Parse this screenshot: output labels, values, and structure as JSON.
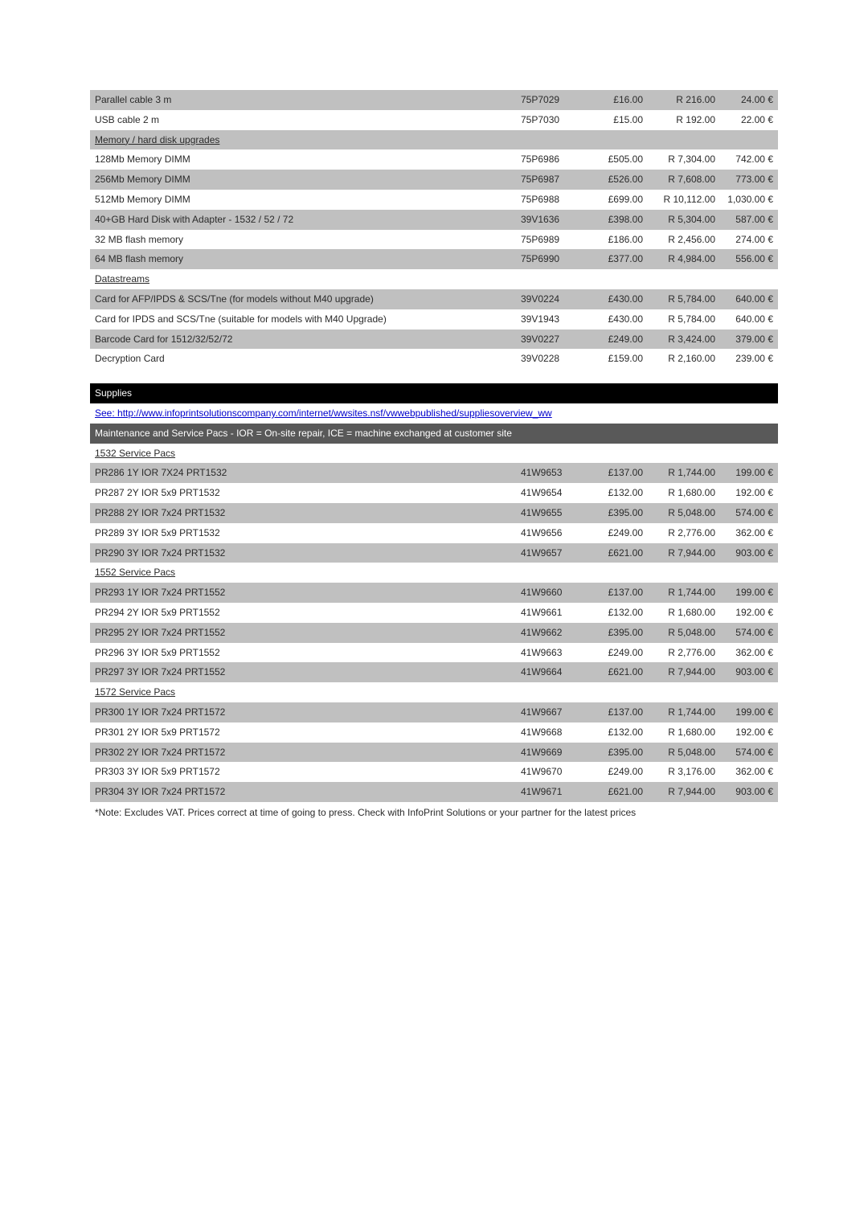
{
  "table1": {
    "rows": [
      {
        "g": 1,
        "d": "Parallel cable 3 m",
        "p": "75P7029",
        "gbp": "£16.00",
        "r": "R 216.00",
        "eur": "24.00 €"
      },
      {
        "g": 0,
        "d": "USB cable 2 m",
        "p": "75P7030",
        "gbp": "£15.00",
        "r": "R 192.00",
        "eur": "22.00 €"
      },
      {
        "g": 1,
        "sub": "Memory / hard disk upgrades"
      },
      {
        "g": 0,
        "d": "128Mb Memory DIMM",
        "p": "75P6986",
        "gbp": "£505.00",
        "r": "R 7,304.00",
        "eur": "742.00 €"
      },
      {
        "g": 1,
        "d": "256Mb Memory DIMM",
        "p": "75P6987",
        "gbp": "£526.00",
        "r": "R 7,608.00",
        "eur": "773.00 €"
      },
      {
        "g": 0,
        "d": "512Mb Memory DIMM",
        "p": "75P6988",
        "gbp": "£699.00",
        "r": "R 10,112.00",
        "eur": "1,030.00 €"
      },
      {
        "g": 1,
        "d": "40+GB Hard Disk with Adapter - 1532 / 52 / 72",
        "p": "39V1636",
        "gbp": "£398.00",
        "r": "R 5,304.00",
        "eur": "587.00 €"
      },
      {
        "g": 0,
        "d": "32 MB flash memory",
        "p": "75P6989",
        "gbp": "£186.00",
        "r": "R 2,456.00",
        "eur": "274.00 €"
      },
      {
        "g": 1,
        "d": "64 MB flash memory",
        "p": "75P6990",
        "gbp": "£377.00",
        "r": "R 4,984.00",
        "eur": "556.00 €"
      },
      {
        "g": 0,
        "sub": "Datastreams"
      },
      {
        "g": 1,
        "d": "Card for AFP/IPDS & SCS/Tne (for models without M40 upgrade)",
        "p": "39V0224",
        "gbp": "£430.00",
        "r": "R 5,784.00",
        "eur": "640.00 €"
      },
      {
        "g": 0,
        "d": "Card for IPDS and SCS/Tne (suitable for models with M40 Upgrade)",
        "p": "39V1943",
        "gbp": "£430.00",
        "r": "R 5,784.00",
        "eur": "640.00 €"
      },
      {
        "g": 1,
        "d": "Barcode Card for 1512/32/52/72",
        "p": "39V0227",
        "gbp": "£249.00",
        "r": "R 3,424.00",
        "eur": "379.00 €"
      },
      {
        "g": 0,
        "d": "Decryption Card",
        "p": "39V0228",
        "gbp": "£159.00",
        "r": "R 2,160.00",
        "eur": "239.00 €"
      }
    ]
  },
  "supplies_label": "Supplies",
  "supplies_link": "See:   http://www.infoprintsolutionscompany.com/internet/wwsites.nsf/vwwebpublished/suppliesoverview_ww",
  "maint_header": "Maintenance and Service Pacs  - IOR = On-site repair, ICE = machine exchanged at customer site",
  "table2": {
    "rows": [
      {
        "g": 0,
        "sub": "1532 Service Pacs"
      },
      {
        "g": 1,
        "d": "PR286 1Y IOR 7X24 PRT1532",
        "p": "41W9653",
        "gbp": "£137.00",
        "r": "R 1,744.00",
        "eur": "199.00 €"
      },
      {
        "g": 0,
        "d": "PR287 2Y IOR 5x9 PRT1532",
        "p": "41W9654",
        "gbp": "£132.00",
        "r": "R 1,680.00",
        "eur": "192.00 €"
      },
      {
        "g": 1,
        "d": "PR288 2Y IOR 7x24 PRT1532",
        "p": "41W9655",
        "gbp": "£395.00",
        "r": "R 5,048.00",
        "eur": "574.00 €"
      },
      {
        "g": 0,
        "d": "PR289 3Y IOR 5x9 PRT1532",
        "p": "41W9656",
        "gbp": "£249.00",
        "r": "R 2,776.00",
        "eur": "362.00 €"
      },
      {
        "g": 1,
        "d": "PR290 3Y IOR 7x24 PRT1532",
        "p": "41W9657",
        "gbp": "£621.00",
        "r": "R 7,944.00",
        "eur": "903.00 €"
      },
      {
        "g": 0,
        "sub": "1552 Service Pacs"
      },
      {
        "g": 1,
        "d": "PR293 1Y IOR 7x24 PRT1552",
        "p": "41W9660",
        "gbp": "£137.00",
        "r": "R 1,744.00",
        "eur": "199.00 €"
      },
      {
        "g": 0,
        "d": "PR294 2Y IOR 5x9 PRT1552",
        "p": "41W9661",
        "gbp": "£132.00",
        "r": "R 1,680.00",
        "eur": "192.00 €"
      },
      {
        "g": 1,
        "d": "PR295 2Y IOR 7x24 PRT1552",
        "p": "41W9662",
        "gbp": "£395.00",
        "r": "R 5,048.00",
        "eur": "574.00 €"
      },
      {
        "g": 0,
        "d": "PR296 3Y IOR 5x9 PRT1552",
        "p": "41W9663",
        "gbp": "£249.00",
        "r": "R 2,776.00",
        "eur": "362.00 €"
      },
      {
        "g": 1,
        "d": "PR297 3Y IOR 7x24 PRT1552",
        "p": "41W9664",
        "gbp": "£621.00",
        "r": "R 7,944.00",
        "eur": "903.00 €"
      },
      {
        "g": 0,
        "sub": "1572 Service Pacs"
      },
      {
        "g": 1,
        "d": "PR300 1Y IOR 7x24 PRT1572",
        "p": "41W9667",
        "gbp": "£137.00",
        "r": "R 1,744.00",
        "eur": "199.00 €"
      },
      {
        "g": 0,
        "d": "PR301 2Y IOR 5x9 PRT1572",
        "p": "41W9668",
        "gbp": "£132.00",
        "r": "R 1,680.00",
        "eur": "192.00 €"
      },
      {
        "g": 1,
        "d": "PR302 2Y IOR 7x24 PRT1572",
        "p": "41W9669",
        "gbp": "£395.00",
        "r": "R 5,048.00",
        "eur": "574.00 €"
      },
      {
        "g": 0,
        "d": "PR303 3Y IOR 5x9 PRT1572",
        "p": "41W9670",
        "gbp": "£249.00",
        "r": "R 3,176.00",
        "eur": "362.00 €"
      },
      {
        "g": 1,
        "d": "PR304 3Y IOR 7x24 PRT1572",
        "p": "41W9671",
        "gbp": "£621.00",
        "r": "R 7,944.00",
        "eur": "903.00 €"
      }
    ]
  },
  "footnote": "*Note: Excludes VAT. Prices correct at time of going to press. Check with InfoPrint Solutions  or your partner for the latest prices"
}
